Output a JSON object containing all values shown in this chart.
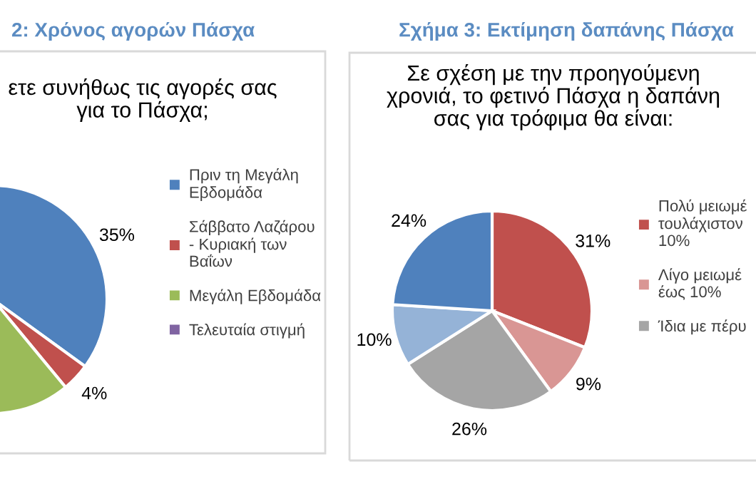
{
  "chart_data": [
    {
      "type": "pie",
      "title": "2: Χρόνος αγορών Πάσχα",
      "subtitle": "ετε συνήθως τις αγορές σας\nγια το Πάσχα;",
      "categories": [
        "Πριν τη Μεγάλη\nΕβδομάδα",
        "Σάββατο Λαζάρου\n- Κυριακή των\nΒαΐων",
        "Μεγάλη Εβδομάδα",
        "Τελευταία στιγμή"
      ],
      "values": [
        35,
        4,
        57,
        null
      ],
      "colors": [
        "#4f81bd",
        "#c0504d",
        "#9bbb59",
        "#8064a2"
      ],
      "value_labels": [
        "35%",
        "4%",
        null,
        null
      ],
      "legend": "right"
    },
    {
      "type": "pie",
      "title": "Σχήμα 3: Εκτίμηση δαπάνης Πάσχα",
      "subtitle": "Σε σχέση με την προηγούμενη\nχρονιά, το φετινό Πάσχα η δαπάνη\nσας για τρόφιμα θα είναι:",
      "categories": [
        "Πολύ μειωμέ\nτουλάχιστον\n10%",
        "Λίγο μειωμέ\nέως 10%",
        "Ίδια με πέρυ",
        null,
        null
      ],
      "values": [
        31,
        9,
        26,
        10,
        24
      ],
      "colors": [
        "#c0504d",
        "#d99694",
        "#a5a5a5",
        "#95b3d7",
        "#4f81bd"
      ],
      "value_labels": [
        "31%",
        "9%",
        "26%",
        "10%",
        "24%"
      ],
      "legend": "right"
    }
  ]
}
